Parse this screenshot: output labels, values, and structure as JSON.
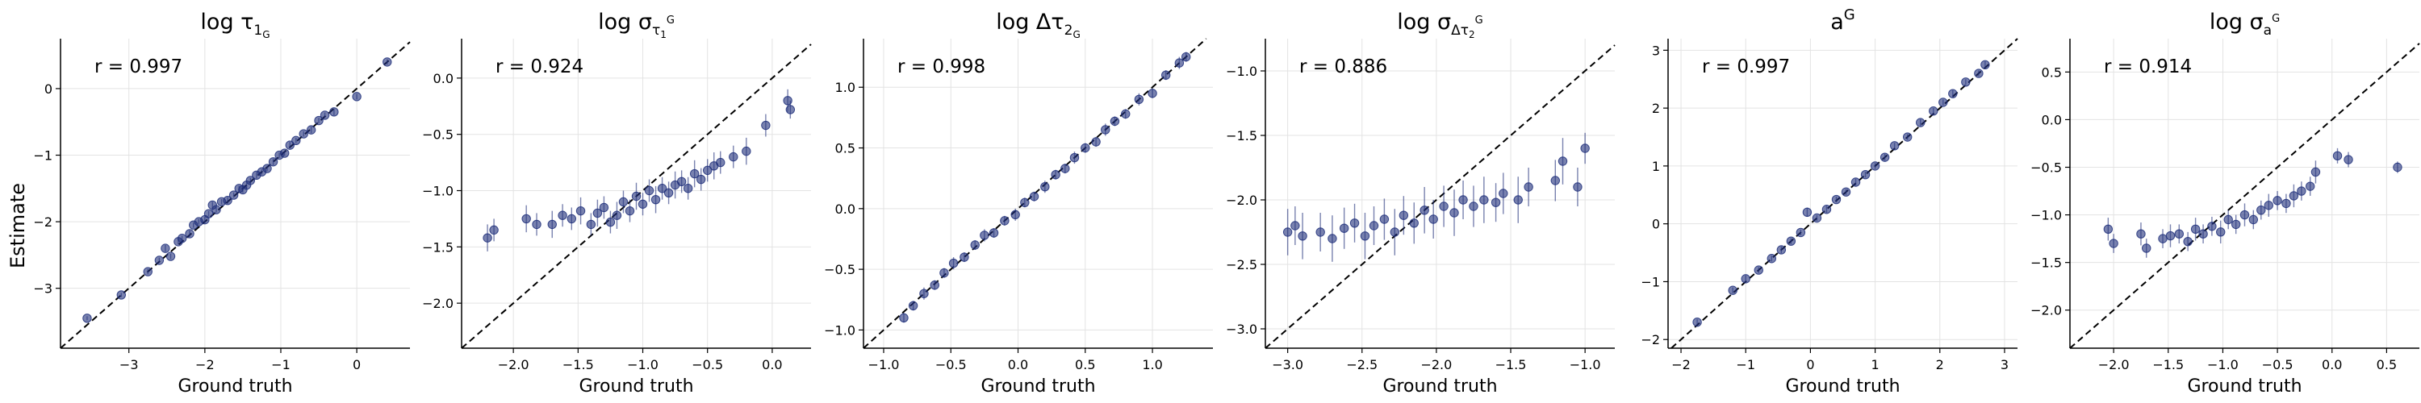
{
  "figure": {
    "ylabel": "Estimate",
    "colors": {
      "point": "#1f2f7a",
      "grid": "#e3e3e3",
      "axis": "#000000",
      "identity": "#000000"
    }
  },
  "chart_data": [
    {
      "type": "scatter",
      "title": "log τ₁ᴳ",
      "title_parts": [
        "log τ",
        "1",
        "G"
      ],
      "annotation": "r = 0.997",
      "xlabel": "Ground truth",
      "xlim": [
        -3.9,
        0.7
      ],
      "ylim": [
        -3.9,
        0.75
      ],
      "xticks": [
        -3,
        -2,
        -1,
        0
      ],
      "yticks": [
        -3,
        -2,
        -1,
        0
      ],
      "xtick_labels": [
        "−3",
        "−2",
        "−1",
        "0"
      ],
      "ytick_labels": [
        "−3",
        "−2",
        "−1",
        "0"
      ],
      "x": [
        -3.55,
        -3.1,
        -2.75,
        -2.6,
        -2.52,
        -2.45,
        -2.35,
        -2.3,
        -2.2,
        -2.15,
        -2.08,
        -2.0,
        -1.95,
        -1.9,
        -1.85,
        -1.78,
        -1.7,
        -1.62,
        -1.55,
        -1.5,
        -1.45,
        -1.4,
        -1.32,
        -1.25,
        -1.18,
        -1.1,
        -1.02,
        -0.95,
        -0.88,
        -0.8,
        -0.7,
        -0.6,
        -0.5,
        -0.42,
        -0.3,
        0.0,
        0.4
      ],
      "y": [
        -3.45,
        -3.1,
        -2.75,
        -2.58,
        -2.4,
        -2.52,
        -2.3,
        -2.25,
        -2.18,
        -2.05,
        -2.0,
        -1.97,
        -1.88,
        -1.75,
        -1.82,
        -1.7,
        -1.68,
        -1.6,
        -1.5,
        -1.52,
        -1.45,
        -1.38,
        -1.3,
        -1.25,
        -1.2,
        -1.1,
        -1.0,
        -0.97,
        -0.85,
        -0.78,
        -0.68,
        -0.62,
        -0.48,
        -0.4,
        -0.35,
        -0.12,
        0.4
      ],
      "err": [
        0.03,
        0.03,
        0.04,
        0.04,
        0.05,
        0.04,
        0.04,
        0.04,
        0.05,
        0.04,
        0.04,
        0.05,
        0.04,
        0.05,
        0.04,
        0.04,
        0.05,
        0.04,
        0.04,
        0.05,
        0.04,
        0.04,
        0.05,
        0.04,
        0.04,
        0.05,
        0.04,
        0.04,
        0.05,
        0.04,
        0.04,
        0.05,
        0.04,
        0.04,
        0.05,
        0.04,
        0.04
      ]
    },
    {
      "type": "scatter",
      "title": "log σ_τ₁ᴳ",
      "title_parts": [
        "log σ",
        "τ",
        "1",
        "G"
      ],
      "annotation": "r = 0.924",
      "xlabel": "Ground truth",
      "xlim": [
        -2.4,
        0.3
      ],
      "ylim": [
        -2.4,
        0.35
      ],
      "xticks": [
        -2.0,
        -1.5,
        -1.0,
        -0.5,
        0.0
      ],
      "yticks": [
        -2.0,
        -1.5,
        -1.0,
        -0.5,
        0.0
      ],
      "xtick_labels": [
        "−2.0",
        "−1.5",
        "−1.0",
        "−0.5",
        "0.0"
      ],
      "ytick_labels": [
        "−2.0",
        "−1.5",
        "−1.0",
        "−0.5",
        "0.0"
      ],
      "x": [
        -2.2,
        -2.15,
        -1.9,
        -1.82,
        -1.7,
        -1.62,
        -1.55,
        -1.48,
        -1.4,
        -1.35,
        -1.3,
        -1.25,
        -1.2,
        -1.15,
        -1.1,
        -1.05,
        -1.0,
        -0.95,
        -0.9,
        -0.85,
        -0.8,
        -0.75,
        -0.7,
        -0.65,
        -0.6,
        -0.55,
        -0.5,
        -0.45,
        -0.4,
        -0.3,
        -0.2,
        -0.05,
        0.12,
        0.14
      ],
      "y": [
        -1.42,
        -1.35,
        -1.25,
        -1.3,
        -1.3,
        -1.22,
        -1.25,
        -1.18,
        -1.3,
        -1.2,
        -1.15,
        -1.28,
        -1.22,
        -1.1,
        -1.18,
        -1.05,
        -1.12,
        -1.0,
        -1.08,
        -0.98,
        -1.02,
        -0.95,
        -0.92,
        -0.98,
        -0.85,
        -0.9,
        -0.82,
        -0.78,
        -0.75,
        -0.7,
        -0.65,
        -0.42,
        -0.2,
        -0.28
      ],
      "err": [
        0.12,
        0.1,
        0.12,
        0.1,
        0.12,
        0.1,
        0.1,
        0.12,
        0.1,
        0.12,
        0.1,
        0.1,
        0.12,
        0.1,
        0.1,
        0.12,
        0.1,
        0.1,
        0.12,
        0.1,
        0.1,
        0.12,
        0.1,
        0.1,
        0.12,
        0.1,
        0.1,
        0.12,
        0.1,
        0.1,
        0.12,
        0.1,
        0.1,
        0.08
      ]
    },
    {
      "type": "scatter",
      "title": "log Δτ₂ᴳ",
      "title_parts": [
        "log Δτ",
        "2",
        "G"
      ],
      "annotation": "r = 0.998",
      "xlabel": "Ground truth",
      "xlim": [
        -1.15,
        1.45
      ],
      "ylim": [
        -1.15,
        1.4
      ],
      "xticks": [
        -1.0,
        -0.5,
        0.0,
        0.5,
        1.0
      ],
      "yticks": [
        -1.0,
        -0.5,
        0.0,
        0.5,
        1.0
      ],
      "xtick_labels": [
        "−1.0",
        "−0.5",
        "0.0",
        "0.5",
        "1.0"
      ],
      "ytick_labels": [
        "−1.0",
        "−0.5",
        "0.0",
        "0.5",
        "1.0"
      ],
      "x": [
        -0.85,
        -0.78,
        -0.7,
        -0.62,
        -0.55,
        -0.48,
        -0.4,
        -0.32,
        -0.25,
        -0.18,
        -0.1,
        -0.02,
        0.05,
        0.12,
        0.2,
        0.28,
        0.35,
        0.42,
        0.5,
        0.58,
        0.65,
        0.72,
        0.8,
        0.9,
        1.0,
        1.1,
        1.2,
        1.25
      ],
      "y": [
        -0.9,
        -0.8,
        -0.7,
        -0.63,
        -0.53,
        -0.45,
        -0.4,
        -0.3,
        -0.22,
        -0.2,
        -0.1,
        -0.05,
        0.05,
        0.1,
        0.18,
        0.28,
        0.33,
        0.42,
        0.5,
        0.55,
        0.65,
        0.72,
        0.78,
        0.9,
        0.95,
        1.1,
        1.2,
        1.25
      ],
      "err": [
        0.04,
        0.04,
        0.05,
        0.04,
        0.04,
        0.05,
        0.04,
        0.04,
        0.05,
        0.04,
        0.04,
        0.05,
        0.04,
        0.04,
        0.05,
        0.04,
        0.04,
        0.05,
        0.04,
        0.04,
        0.05,
        0.04,
        0.04,
        0.05,
        0.04,
        0.04,
        0.05,
        0.04
      ]
    },
    {
      "type": "scatter",
      "title": "log σ_Δτ₂ᴳ",
      "title_parts": [
        "log σ",
        "Δτ",
        "2",
        "G"
      ],
      "annotation": "r = 0.886",
      "xlabel": "Ground truth",
      "xlim": [
        -3.15,
        -0.8
      ],
      "ylim": [
        -3.15,
        -0.75
      ],
      "xticks": [
        -3.0,
        -2.5,
        -2.0,
        -1.5,
        -1.0
      ],
      "yticks": [
        -3.0,
        -2.5,
        -2.0,
        -1.5,
        -1.0
      ],
      "xtick_labels": [
        "−3.0",
        "−2.5",
        "−2.0",
        "−1.5",
        "−1.0"
      ],
      "ytick_labels": [
        "−3.0",
        "−2.5",
        "−2.0",
        "−1.5",
        "−1.0"
      ],
      "x": [
        -3.0,
        -2.95,
        -2.9,
        -2.78,
        -2.7,
        -2.62,
        -2.55,
        -2.48,
        -2.42,
        -2.35,
        -2.28,
        -2.22,
        -2.15,
        -2.08,
        -2.02,
        -1.95,
        -1.88,
        -1.82,
        -1.75,
        -1.68,
        -1.6,
        -1.55,
        -1.45,
        -1.38,
        -1.2,
        -1.15,
        -1.05,
        -1.0
      ],
      "y": [
        -2.25,
        -2.2,
        -2.28,
        -2.25,
        -2.3,
        -2.22,
        -2.18,
        -2.28,
        -2.2,
        -2.15,
        -2.25,
        -2.12,
        -2.18,
        -2.08,
        -2.15,
        -2.05,
        -2.1,
        -2.0,
        -2.05,
        -2.0,
        -2.02,
        -1.95,
        -2.0,
        -1.9,
        -1.85,
        -1.7,
        -1.9,
        -1.6
      ],
      "err": [
        0.18,
        0.15,
        0.18,
        0.15,
        0.18,
        0.16,
        0.15,
        0.18,
        0.15,
        0.16,
        0.18,
        0.15,
        0.16,
        0.18,
        0.15,
        0.16,
        0.18,
        0.15,
        0.16,
        0.18,
        0.15,
        0.16,
        0.18,
        0.15,
        0.16,
        0.18,
        0.15,
        0.12
      ]
    },
    {
      "type": "scatter",
      "title": "aᴳ",
      "title_parts": [
        "a",
        "",
        "",
        "G"
      ],
      "annotation": "r = 0.997",
      "xlabel": "Ground truth",
      "xlim": [
        -2.2,
        3.2
      ],
      "ylim": [
        -2.15,
        3.2
      ],
      "xticks": [
        -2,
        -1,
        0,
        1,
        2,
        3
      ],
      "yticks": [
        -2,
        -1,
        0,
        1,
        2,
        3
      ],
      "xtick_labels": [
        "−2",
        "−1",
        "0",
        "1",
        "2",
        "3"
      ],
      "ytick_labels": [
        "−2",
        "−1",
        "0",
        "1",
        "2",
        "3"
      ],
      "x": [
        -1.75,
        -1.2,
        -1.0,
        -0.8,
        -0.6,
        -0.45,
        -0.3,
        -0.15,
        -0.05,
        0.1,
        0.25,
        0.4,
        0.55,
        0.7,
        0.85,
        1.0,
        1.15,
        1.3,
        1.5,
        1.7,
        1.9,
        2.05,
        2.2,
        2.4,
        2.6,
        2.7
      ],
      "y": [
        -1.7,
        -1.15,
        -0.95,
        -0.8,
        -0.6,
        -0.45,
        -0.3,
        -0.15,
        0.2,
        0.1,
        0.25,
        0.42,
        0.55,
        0.72,
        0.85,
        1.0,
        1.15,
        1.35,
        1.5,
        1.75,
        1.95,
        2.1,
        2.25,
        2.45,
        2.6,
        2.75
      ],
      "err": [
        0.05,
        0.05,
        0.06,
        0.05,
        0.05,
        0.06,
        0.05,
        0.05,
        0.08,
        0.05,
        0.06,
        0.05,
        0.05,
        0.06,
        0.05,
        0.05,
        0.06,
        0.05,
        0.05,
        0.06,
        0.05,
        0.05,
        0.06,
        0.05,
        0.05,
        0.06
      ]
    },
    {
      "type": "scatter",
      "title": "log σ_aᴳ",
      "title_parts": [
        "log σ",
        "a",
        "",
        "G"
      ],
      "annotation": "r = 0.914",
      "xlabel": "Ground truth",
      "xlim": [
        -2.4,
        0.8
      ],
      "ylim": [
        -2.4,
        0.85
      ],
      "xticks": [
        -2.0,
        -1.5,
        -1.0,
        -0.5,
        0.0,
        0.5
      ],
      "yticks": [
        -2.0,
        -1.5,
        -1.0,
        -0.5,
        0.0,
        0.5
      ],
      "xtick_labels": [
        "−2.0",
        "−1.5",
        "−1.0",
        "−0.5",
        "0.0",
        "0.5"
      ],
      "ytick_labels": [
        "−2.0",
        "−1.5",
        "−1.0",
        "−0.5",
        "0.0",
        "0.5"
      ],
      "x": [
        -2.05,
        -2.0,
        -1.75,
        -1.7,
        -1.55,
        -1.48,
        -1.4,
        -1.32,
        -1.25,
        -1.18,
        -1.1,
        -1.02,
        -0.95,
        -0.88,
        -0.8,
        -0.72,
        -0.65,
        -0.58,
        -0.5,
        -0.42,
        -0.35,
        -0.28,
        -0.2,
        -0.15,
        0.05,
        0.15,
        0.6
      ],
      "y": [
        -1.15,
        -1.3,
        -1.2,
        -1.35,
        -1.25,
        -1.22,
        -1.2,
        -1.28,
        -1.15,
        -1.2,
        -1.12,
        -1.18,
        -1.05,
        -1.1,
        -1.0,
        -1.05,
        -0.95,
        -0.9,
        -0.85,
        -0.88,
        -0.8,
        -0.75,
        -0.7,
        -0.55,
        -0.38,
        -0.42,
        -0.5
      ],
      "err": [
        0.12,
        0.1,
        0.12,
        0.1,
        0.1,
        0.12,
        0.1,
        0.1,
        0.12,
        0.1,
        0.1,
        0.12,
        0.1,
        0.1,
        0.12,
        0.1,
        0.1,
        0.12,
        0.1,
        0.1,
        0.12,
        0.1,
        0.1,
        0.12,
        0.08,
        0.08,
        0.06
      ]
    }
  ]
}
